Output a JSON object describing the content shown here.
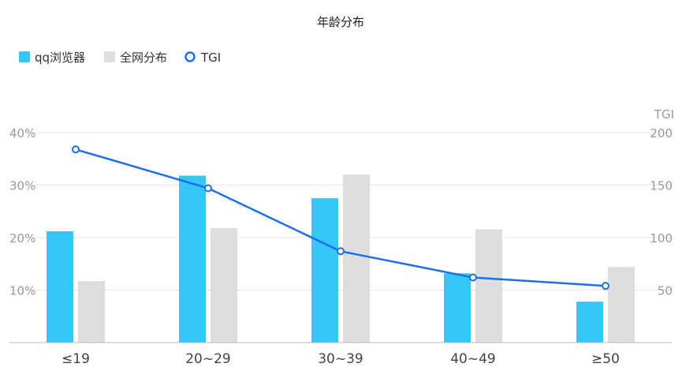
{
  "chart_data": {
    "type": "bar",
    "title": "年龄分布",
    "categories": [
      "≤19",
      "20~29",
      "30~39",
      "40~49",
      "≥50"
    ],
    "series": [
      {
        "name": "qq浏览器",
        "type": "bar",
        "axis": "left",
        "values": [
          21.2,
          31.8,
          27.5,
          13.2,
          7.8
        ]
      },
      {
        "name": "全网分布",
        "type": "bar",
        "axis": "left",
        "values": [
          11.7,
          21.8,
          32.0,
          21.6,
          14.4
        ]
      },
      {
        "name": "TGI",
        "type": "line",
        "axis": "right",
        "values": [
          184,
          147,
          87,
          62,
          54
        ]
      }
    ],
    "y_left": {
      "ylim": [
        0,
        40
      ],
      "ticks": [
        "10%",
        "20%",
        "30%",
        "40%"
      ],
      "tick_values": [
        10,
        20,
        30,
        40
      ]
    },
    "y_right": {
      "label": "TGI",
      "ylim": [
        0,
        200
      ],
      "ticks": [
        "50",
        "100",
        "150",
        "200"
      ],
      "tick_values": [
        50,
        100,
        150,
        200
      ]
    },
    "grid": true,
    "legend_position": "top-left",
    "colors": {
      "qq": "#35c7f7",
      "all": "#dedede",
      "tgi": "#1f6fe5"
    }
  }
}
